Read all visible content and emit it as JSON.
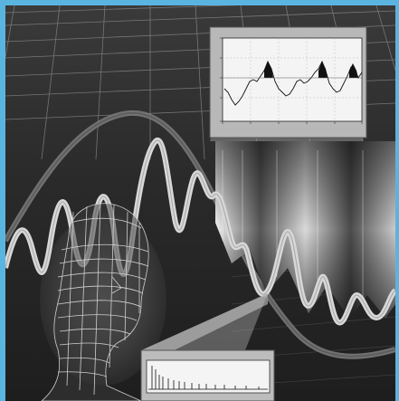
{
  "image": {
    "subject": "illustration",
    "colors": {
      "border": "#5ab4e0",
      "background_dark": "#2b2b2b",
      "background_light": "#bdbdbd",
      "grid_line": "#8a8a8a",
      "wave_light": "#d9d9d9",
      "wave_dark": "#6e6e6e",
      "inset_panel": "#f2f2f2"
    },
    "elements": [
      "perspective-grid",
      "sine-wave",
      "signal-wave",
      "wireframe-head",
      "spectrogram",
      "inset-plot",
      "inset-spectrum"
    ]
  }
}
